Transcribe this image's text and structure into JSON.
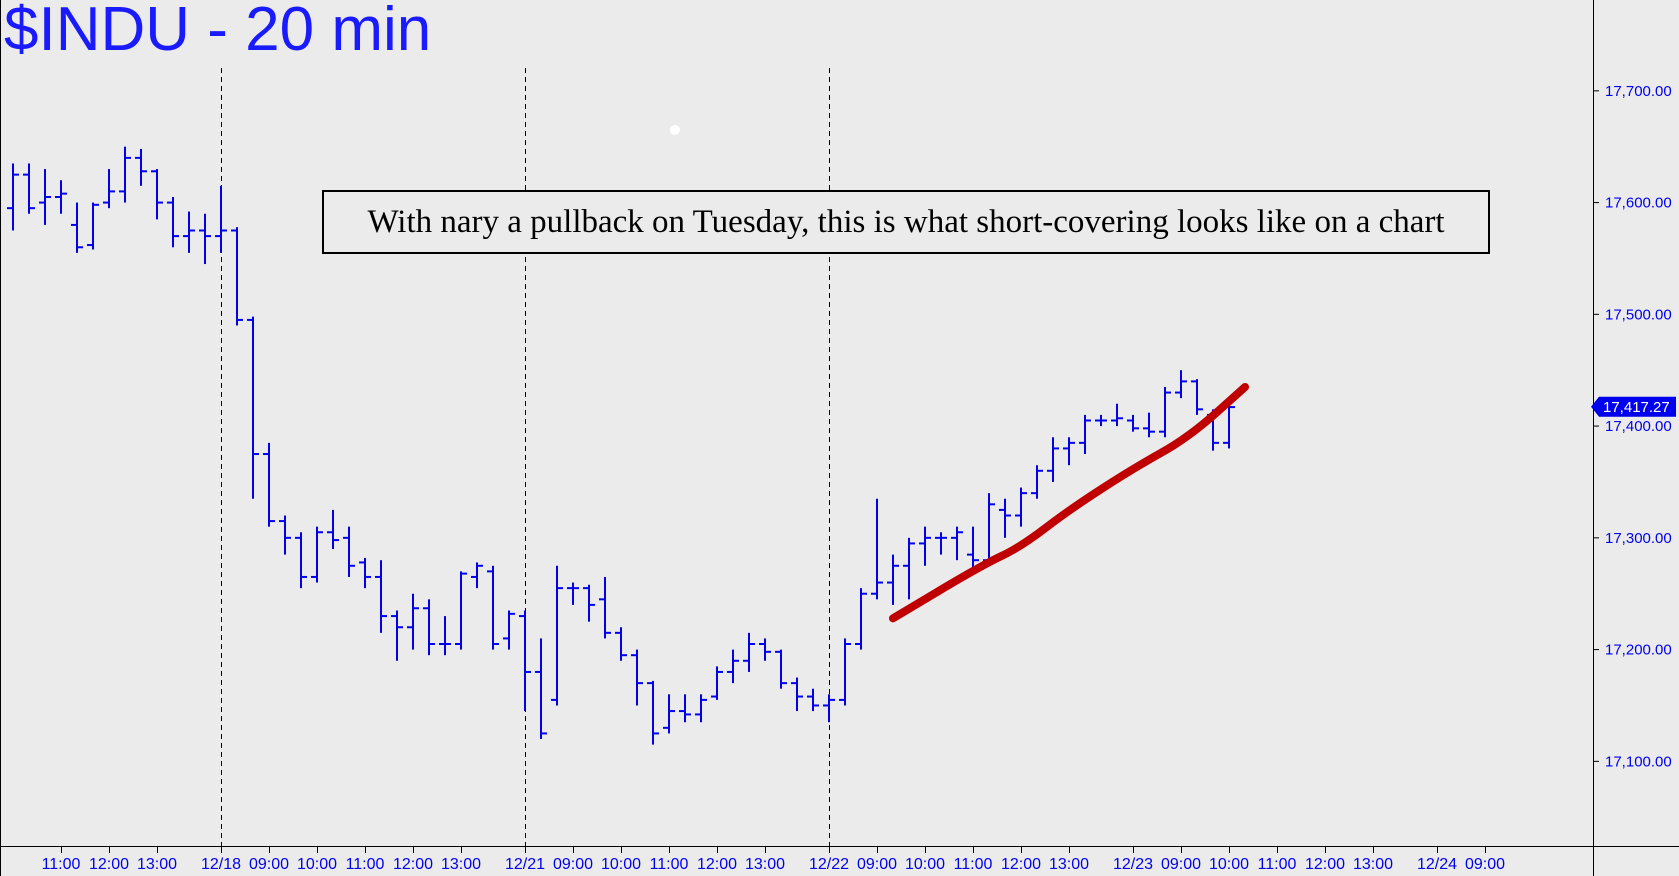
{
  "chart_data": {
    "type": "ohlc",
    "title": "$INDU - 20 min",
    "annotation": "With nary a pullback on Tuesday, this is what short-covering looks like on a chart",
    "last_price_label": "17,417.27",
    "last_price": 17417.27,
    "ylim": [
      17035,
      17775
    ],
    "y_ticks": [
      {
        "value": 17100,
        "label": "17,100.00"
      },
      {
        "value": 17200,
        "label": "17,200.00"
      },
      {
        "value": 17300,
        "label": "17,300.00"
      },
      {
        "value": 17400,
        "label": "17,400.00"
      },
      {
        "value": 17500,
        "label": "17,500.00"
      },
      {
        "value": 17600,
        "label": "17,600.00"
      },
      {
        "value": 17700,
        "label": "17,700.00"
      }
    ],
    "x_ticks": [
      {
        "slot": 4,
        "label": "11:00"
      },
      {
        "slot": 7,
        "label": "12:00"
      },
      {
        "slot": 10,
        "label": "13:00"
      },
      {
        "slot": 14,
        "label": "12/18"
      },
      {
        "slot": 17,
        "label": "09:00"
      },
      {
        "slot": 20,
        "label": "10:00"
      },
      {
        "slot": 23,
        "label": "11:00"
      },
      {
        "slot": 26,
        "label": "12:00"
      },
      {
        "slot": 29,
        "label": "13:00"
      },
      {
        "slot": 33,
        "label": "12/21"
      },
      {
        "slot": 36,
        "label": "09:00"
      },
      {
        "slot": 39,
        "label": "10:00"
      },
      {
        "slot": 42,
        "label": "11:00"
      },
      {
        "slot": 45,
        "label": "12:00"
      },
      {
        "slot": 48,
        "label": "13:00"
      },
      {
        "slot": 52,
        "label": "12/22"
      },
      {
        "slot": 55,
        "label": "09:00"
      },
      {
        "slot": 58,
        "label": "10:00"
      },
      {
        "slot": 61,
        "label": "11:00"
      },
      {
        "slot": 64,
        "label": "12:00"
      },
      {
        "slot": 67,
        "label": "13:00"
      },
      {
        "slot": 71,
        "label": "12/23"
      },
      {
        "slot": 74,
        "label": "09:00"
      },
      {
        "slot": 77,
        "label": "10:00"
      },
      {
        "slot": 80,
        "label": "11:00"
      },
      {
        "slot": 83,
        "label": "12:00"
      },
      {
        "slot": 86,
        "label": "13:00"
      },
      {
        "slot": 90,
        "label": "12/24"
      },
      {
        "slot": 93,
        "label": "09:00"
      }
    ],
    "day_separators": [
      14,
      33,
      52
    ],
    "bars": [
      {
        "x": 1,
        "o": 17595,
        "h": 17635,
        "l": 17575,
        "c": 17625
      },
      {
        "x": 2,
        "o": 17625,
        "h": 17635,
        "l": 17590,
        "c": 17595
      },
      {
        "x": 3,
        "o": 17600,
        "h": 17630,
        "l": 17580,
        "c": 17605
      },
      {
        "x": 4,
        "o": 17605,
        "h": 17620,
        "l": 17590,
        "c": 17608
      },
      {
        "x": 5,
        "o": 17580,
        "h": 17600,
        "l": 17555,
        "c": 17560
      },
      {
        "x": 6,
        "o": 17562,
        "h": 17600,
        "l": 17558,
        "c": 17598
      },
      {
        "x": 7,
        "o": 17600,
        "h": 17630,
        "l": 17595,
        "c": 17610
      },
      {
        "x": 8,
        "o": 17610,
        "h": 17650,
        "l": 17600,
        "c": 17640
      },
      {
        "x": 9,
        "o": 17640,
        "h": 17648,
        "l": 17615,
        "c": 17628
      },
      {
        "x": 10,
        "o": 17628,
        "h": 17630,
        "l": 17585,
        "c": 17600
      },
      {
        "x": 11,
        "o": 17600,
        "h": 17605,
        "l": 17560,
        "c": 17570
      },
      {
        "x": 12,
        "o": 17570,
        "h": 17592,
        "l": 17555,
        "c": 17575
      },
      {
        "x": 13,
        "o": 17575,
        "h": 17590,
        "l": 17545,
        "c": 17570
      },
      {
        "x": 14,
        "o": 17570,
        "h": 17615,
        "l": 17555,
        "c": 17575
      },
      {
        "x": 15,
        "o": 17575,
        "h": 17578,
        "l": 17490,
        "c": 17495
      },
      {
        "x": 16,
        "o": 17495,
        "h": 17498,
        "l": 17335,
        "c": 17375
      },
      {
        "x": 17,
        "o": 17375,
        "h": 17385,
        "l": 17310,
        "c": 17315
      },
      {
        "x": 18,
        "o": 17315,
        "h": 17320,
        "l": 17285,
        "c": 17300
      },
      {
        "x": 19,
        "o": 17300,
        "h": 17305,
        "l": 17255,
        "c": 17265
      },
      {
        "x": 20,
        "o": 17265,
        "h": 17310,
        "l": 17260,
        "c": 17305
      },
      {
        "x": 21,
        "o": 17305,
        "h": 17325,
        "l": 17290,
        "c": 17298
      },
      {
        "x": 22,
        "o": 17300,
        "h": 17310,
        "l": 17265,
        "c": 17275
      },
      {
        "x": 23,
        "o": 17278,
        "h": 17282,
        "l": 17255,
        "c": 17265
      },
      {
        "x": 24,
        "o": 17265,
        "h": 17280,
        "l": 17215,
        "c": 17230
      },
      {
        "x": 25,
        "o": 17230,
        "h": 17235,
        "l": 17190,
        "c": 17220
      },
      {
        "x": 26,
        "o": 17220,
        "h": 17250,
        "l": 17200,
        "c": 17237
      },
      {
        "x": 27,
        "o": 17237,
        "h": 17245,
        "l": 17195,
        "c": 17205
      },
      {
        "x": 28,
        "o": 17205,
        "h": 17230,
        "l": 17195,
        "c": 17205
      },
      {
        "x": 29,
        "o": 17205,
        "h": 17270,
        "l": 17200,
        "c": 17268
      },
      {
        "x": 30,
        "o": 17265,
        "h": 17278,
        "l": 17255,
        "c": 17275
      },
      {
        "x": 31,
        "o": 17270,
        "h": 17275,
        "l": 17200,
        "c": 17205
      },
      {
        "x": 32,
        "o": 17210,
        "h": 17235,
        "l": 17200,
        "c": 17232
      },
      {
        "x": 33,
        "o": 17230,
        "h": 17235,
        "l": 17145,
        "c": 17180
      },
      {
        "x": 34,
        "o": 17180,
        "h": 17210,
        "l": 17120,
        "c": 17125
      },
      {
        "x": 35,
        "o": 17155,
        "h": 17275,
        "l": 17150,
        "c": 17255
      },
      {
        "x": 36,
        "o": 17255,
        "h": 17260,
        "l": 17240,
        "c": 17255
      },
      {
        "x": 37,
        "o": 17255,
        "h": 17258,
        "l": 17225,
        "c": 17240
      },
      {
        "x": 38,
        "o": 17245,
        "h": 17265,
        "l": 17210,
        "c": 17215
      },
      {
        "x": 39,
        "o": 17215,
        "h": 17220,
        "l": 17190,
        "c": 17195
      },
      {
        "x": 40,
        "o": 17195,
        "h": 17200,
        "l": 17150,
        "c": 17170
      },
      {
        "x": 41,
        "o": 17170,
        "h": 17172,
        "l": 17115,
        "c": 17125
      },
      {
        "x": 42,
        "o": 17130,
        "h": 17160,
        "l": 17125,
        "c": 17145
      },
      {
        "x": 43,
        "o": 17145,
        "h": 17160,
        "l": 17135,
        "c": 17142
      },
      {
        "x": 44,
        "o": 17142,
        "h": 17160,
        "l": 17135,
        "c": 17155
      },
      {
        "x": 45,
        "o": 17158,
        "h": 17185,
        "l": 17155,
        "c": 17180
      },
      {
        "x": 46,
        "o": 17180,
        "h": 17200,
        "l": 17170,
        "c": 17190
      },
      {
        "x": 47,
        "o": 17190,
        "h": 17215,
        "l": 17180,
        "c": 17205
      },
      {
        "x": 48,
        "o": 17205,
        "h": 17210,
        "l": 17190,
        "c": 17198
      },
      {
        "x": 49,
        "o": 17198,
        "h": 17200,
        "l": 17165,
        "c": 17170
      },
      {
        "x": 50,
        "o": 17170,
        "h": 17175,
        "l": 17145,
        "c": 17158
      },
      {
        "x": 51,
        "o": 17158,
        "h": 17165,
        "l": 17145,
        "c": 17150
      },
      {
        "x": 52,
        "o": 17150,
        "h": 17160,
        "l": 17135,
        "c": 17155
      },
      {
        "x": 53,
        "o": 17155,
        "h": 17210,
        "l": 17150,
        "c": 17205
      },
      {
        "x": 54,
        "o": 17205,
        "h": 17255,
        "l": 17200,
        "c": 17250
      },
      {
        "x": 55,
        "o": 17250,
        "h": 17335,
        "l": 17245,
        "c": 17260
      },
      {
        "x": 56,
        "o": 17260,
        "h": 17285,
        "l": 17240,
        "c": 17275
      },
      {
        "x": 57,
        "o": 17275,
        "h": 17300,
        "l": 17245,
        "c": 17295
      },
      {
        "x": 58,
        "o": 17295,
        "h": 17310,
        "l": 17275,
        "c": 17300
      },
      {
        "x": 59,
        "o": 17300,
        "h": 17305,
        "l": 17285,
        "c": 17300
      },
      {
        "x": 60,
        "o": 17300,
        "h": 17310,
        "l": 17280,
        "c": 17305
      },
      {
        "x": 61,
        "o": 17285,
        "h": 17310,
        "l": 17270,
        "c": 17280
      },
      {
        "x": 62,
        "o": 17280,
        "h": 17340,
        "l": 17275,
        "c": 17330
      },
      {
        "x": 63,
        "o": 17325,
        "h": 17335,
        "l": 17300,
        "c": 17320
      },
      {
        "x": 64,
        "o": 17320,
        "h": 17345,
        "l": 17310,
        "c": 17340
      },
      {
        "x": 65,
        "o": 17340,
        "h": 17365,
        "l": 17335,
        "c": 17360
      },
      {
        "x": 66,
        "o": 17360,
        "h": 17390,
        "l": 17350,
        "c": 17380
      },
      {
        "x": 67,
        "o": 17380,
        "h": 17390,
        "l": 17365,
        "c": 17385
      },
      {
        "x": 68,
        "o": 17385,
        "h": 17410,
        "l": 17375,
        "c": 17405
      },
      {
        "x": 69,
        "o": 17405,
        "h": 17410,
        "l": 17400,
        "c": 17405
      },
      {
        "x": 70,
        "o": 17405,
        "h": 17420,
        "l": 17400,
        "c": 17407
      },
      {
        "x": 71,
        "o": 17405,
        "h": 17410,
        "l": 17395,
        "c": 17398
      },
      {
        "x": 72,
        "o": 17398,
        "h": 17412,
        "l": 17390,
        "c": 17395
      },
      {
        "x": 73,
        "o": 17395,
        "h": 17435,
        "l": 17390,
        "c": 17430
      },
      {
        "x": 74,
        "o": 17430,
        "h": 17450,
        "l": 17425,
        "c": 17440
      },
      {
        "x": 75,
        "o": 17440,
        "h": 17442,
        "l": 17410,
        "c": 17415
      },
      {
        "x": 76,
        "o": 17410,
        "h": 17415,
        "l": 17378,
        "c": 17385
      },
      {
        "x": 77,
        "o": 17385,
        "h": 17420,
        "l": 17380,
        "c": 17417
      }
    ],
    "trendline": {
      "color": "#c00000",
      "points": [
        [
          56.0,
          17228
        ],
        [
          61.5,
          17275
        ],
        [
          64,
          17292
        ],
        [
          67,
          17325
        ],
        [
          71,
          17362
        ],
        [
          74.5,
          17390
        ],
        [
          78,
          17435
        ]
      ]
    }
  },
  "colors": {
    "bars": "#0000ee",
    "title": "#1a1aff",
    "background": "#ebebeb",
    "trendline": "#c00000",
    "grid": "#000000",
    "price_tag": "#0000ee"
  }
}
